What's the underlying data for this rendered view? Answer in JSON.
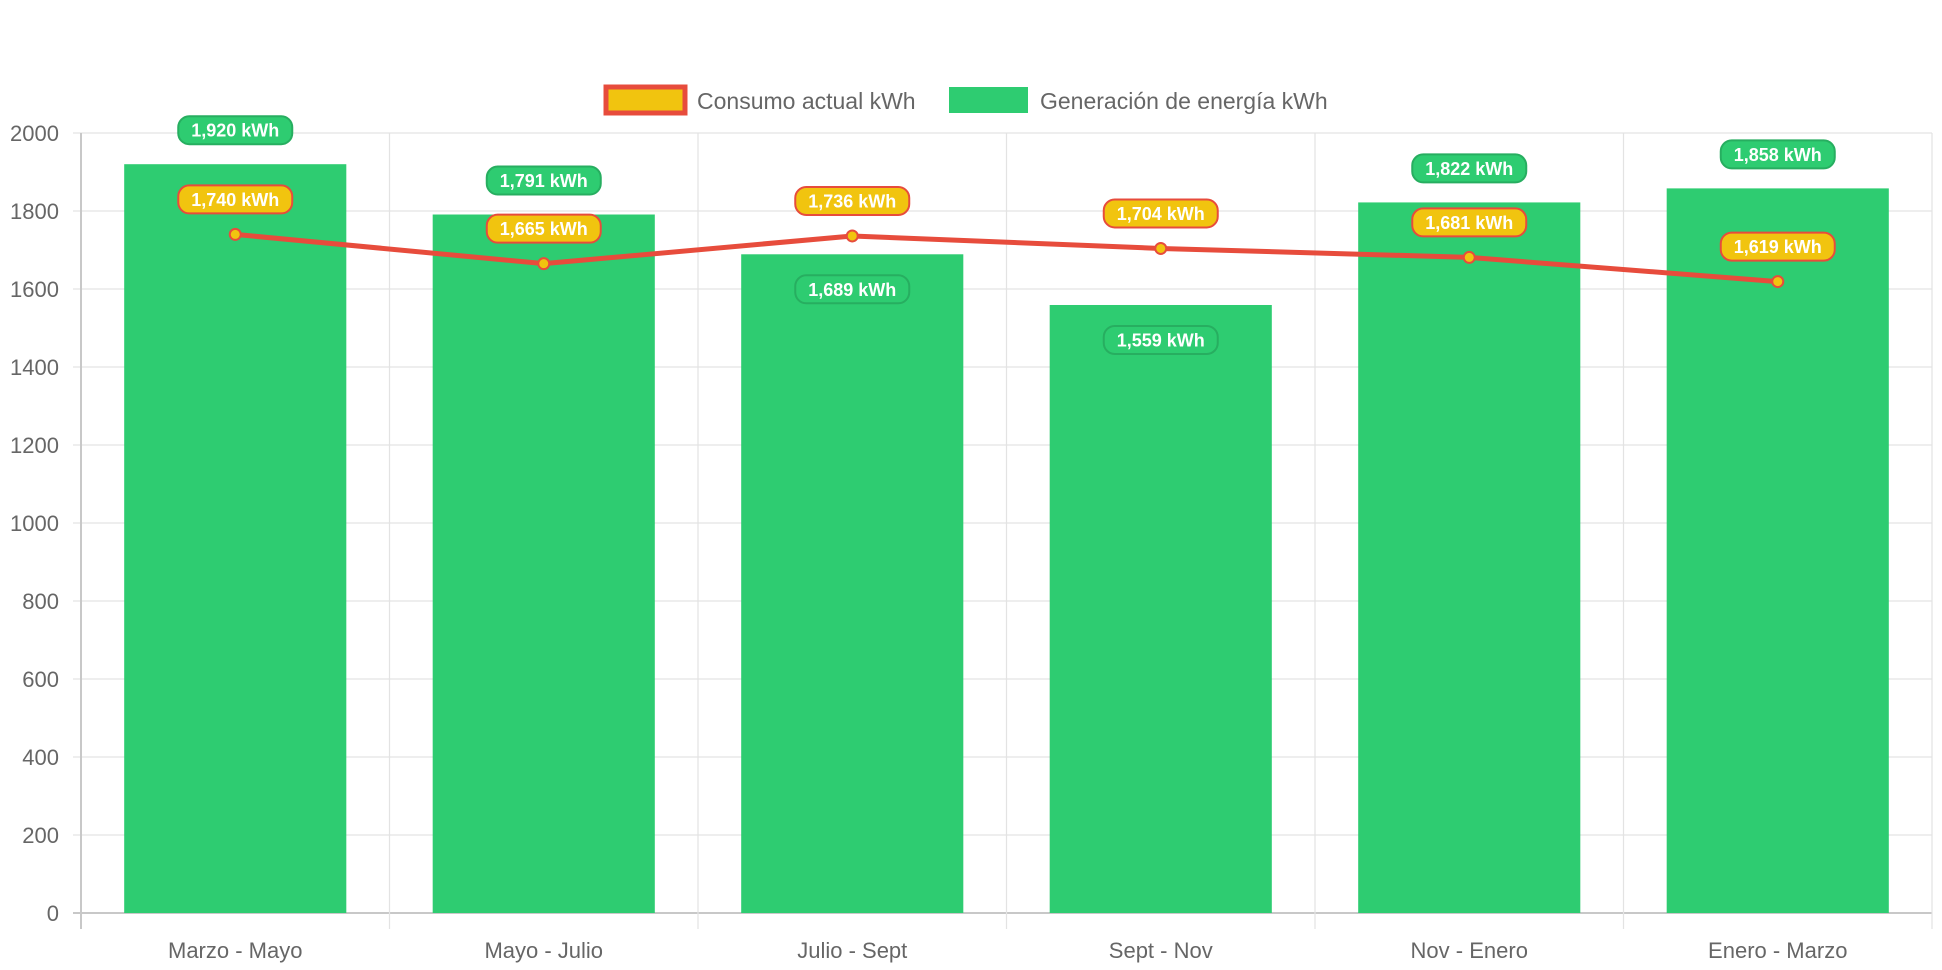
{
  "chart_data": {
    "type": "bar",
    "categories": [
      "Marzo - Mayo",
      "Mayo - Julio",
      "Julio - Sept",
      "Sept - Nov",
      "Nov - Enero",
      "Enero - Marzo"
    ],
    "series": [
      {
        "name": "Consumo actual kWh",
        "type": "line",
        "values": [
          1740,
          1665,
          1736,
          1704,
          1681,
          1619
        ],
        "labels": [
          "1,740 kWh",
          "1,665 kWh",
          "1,736 kWh",
          "1,704 kWh",
          "1,681 kWh",
          "1,619 kWh"
        ],
        "color": "#e74c3c",
        "fill_color": "#f1c40f"
      },
      {
        "name": "Generación de energía kWh",
        "type": "bar",
        "values": [
          1920,
          1791,
          1689,
          1559,
          1822,
          1858
        ],
        "labels": [
          "1,920 kWh",
          "1,791 kWh",
          "1,689 kWh",
          "1,559 kWh",
          "1,822 kWh",
          "1,858 kWh"
        ],
        "color": "#2ecc71"
      }
    ],
    "ylim": [
      0,
      2000
    ],
    "yticks": [
      "0",
      "200",
      "400",
      "600",
      "800",
      "1000",
      "1200",
      "1400",
      "1600",
      "1800",
      "2000"
    ],
    "grid": true,
    "legend": "top-center"
  }
}
